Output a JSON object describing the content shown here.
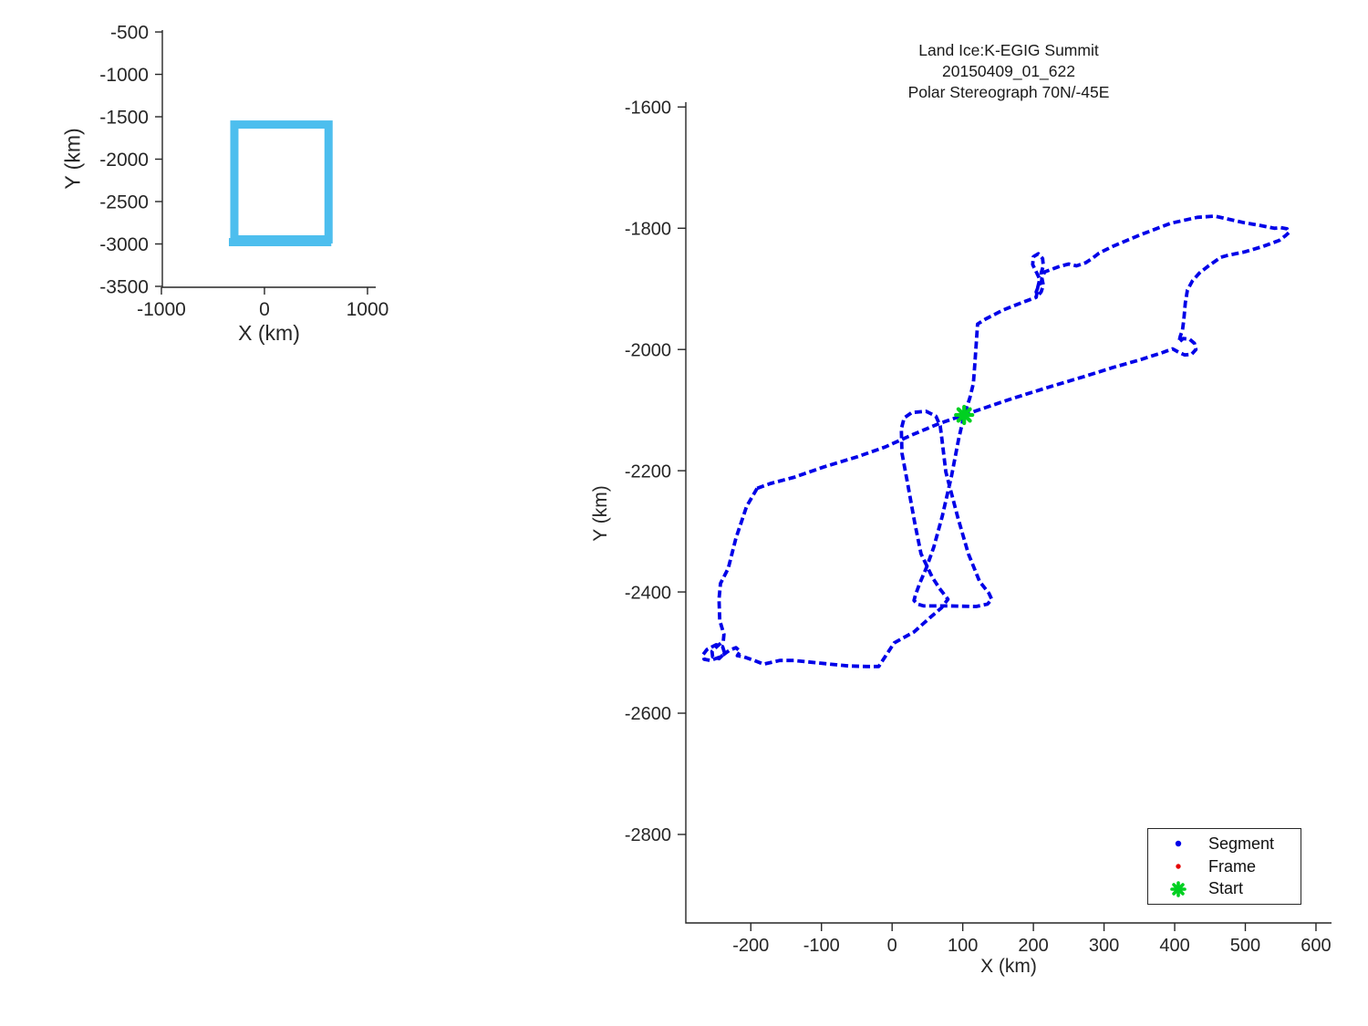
{
  "figure_background": "#FFFFFF",
  "axis_color": "#262626",
  "legend": {
    "items": [
      {
        "label": "Segment",
        "marker": "dot",
        "color": "#0000E8"
      },
      {
        "label": "Frame",
        "marker": "dot",
        "color": "#E60000"
      },
      {
        "label": "Start",
        "marker": "asterisk",
        "color": "#00D021"
      }
    ]
  },
  "chart_data": [
    {
      "type": "line",
      "role": "overview-map",
      "title": "",
      "xlabel": "X (km)",
      "ylabel": "Y (km)",
      "xlim": [
        -991,
        1080
      ],
      "ylim": [
        -3511,
        -478
      ],
      "x_ticks": [
        -1000,
        0,
        1000
      ],
      "y_ticks": [
        -500,
        -1000,
        -1500,
        -2000,
        -2500,
        -3000,
        -3500
      ],
      "grid": false,
      "series": [
        {
          "name": "coverage-extent-box",
          "type": "box",
          "x_range": [
            -292,
            622
          ],
          "y_range": [
            -2946,
            -1592
          ],
          "color": "#4DBEEE",
          "line_width": 9
        }
      ]
    },
    {
      "type": "line",
      "role": "flight-track",
      "title_lines": [
        "Land Ice:K-EGIG Summit",
        "20150409_01_622",
        "Polar Stereograph 70N/-45E"
      ],
      "xlabel": "X (km)",
      "ylabel": "Y (km)",
      "xlim": [
        -292,
        622
      ],
      "ylim": [
        -2946,
        -1592
      ],
      "x_ticks": [
        -200,
        -100,
        0,
        100,
        200,
        300,
        400,
        500,
        600
      ],
      "y_ticks": [
        -1600,
        -1800,
        -2000,
        -2200,
        -2400,
        -2600,
        -2800
      ],
      "grid": false,
      "legend_position": "southeast",
      "series": [
        {
          "name": "Segment",
          "style": "dashed",
          "color": "#0000E8",
          "points": [
            [
              -191,
              -2229
            ],
            [
              -172,
              -2221
            ],
            [
              -139,
              -2211
            ],
            [
              -97,
              -2194
            ],
            [
              -49,
              -2177
            ],
            [
              -10,
              -2161
            ],
            [
              28,
              -2141
            ],
            [
              67,
              -2122
            ],
            [
              102,
              -2108
            ],
            [
              132,
              -2096
            ],
            [
              170,
              -2081
            ],
            [
              222,
              -2062
            ],
            [
              274,
              -2044
            ],
            [
              312,
              -2030
            ],
            [
              351,
              -2017
            ],
            [
              383,
              -2005
            ],
            [
              397,
              -1999
            ],
            [
              405,
              -2004
            ],
            [
              414,
              -2009
            ],
            [
              424,
              -2008
            ],
            [
              430,
              -2000
            ],
            [
              428,
              -1990
            ],
            [
              421,
              -1983
            ],
            [
              412,
              -1982
            ],
            [
              406,
              -1988
            ],
            [
              408,
              -1978
            ],
            [
              411,
              -1968
            ],
            [
              413,
              -1950
            ],
            [
              415,
              -1923
            ],
            [
              418,
              -1902
            ],
            [
              425,
              -1887
            ],
            [
              435,
              -1874
            ],
            [
              448,
              -1862
            ],
            [
              465,
              -1848
            ],
            [
              474,
              -1845
            ],
            [
              499,
              -1839
            ],
            [
              525,
              -1830
            ],
            [
              548,
              -1820
            ],
            [
              556,
              -1813
            ],
            [
              562,
              -1807
            ],
            [
              559,
              -1801
            ],
            [
              550,
              -1799
            ],
            [
              541,
              -1800
            ],
            [
              519,
              -1795
            ],
            [
              499,
              -1791
            ],
            [
              480,
              -1786
            ],
            [
              457,
              -1780
            ],
            [
              432,
              -1782
            ],
            [
              394,
              -1792
            ],
            [
              351,
              -1811
            ],
            [
              312,
              -1830
            ],
            [
              293,
              -1841
            ],
            [
              283,
              -1850
            ],
            [
              274,
              -1857
            ],
            [
              261,
              -1862
            ],
            [
              250,
              -1859
            ],
            [
              237,
              -1863
            ],
            [
              225,
              -1868
            ],
            [
              216,
              -1872
            ],
            [
              212,
              -1882
            ],
            [
              214,
              -1894
            ],
            [
              211,
              -1905
            ],
            [
              206,
              -1912
            ],
            [
              204,
              -1905
            ],
            [
              207,
              -1896
            ],
            [
              212,
              -1886
            ],
            [
              211,
              -1874
            ],
            [
              214,
              -1862
            ],
            [
              213,
              -1850
            ],
            [
              207,
              -1842
            ],
            [
              200,
              -1847
            ],
            [
              199,
              -1860
            ],
            [
              204,
              -1872
            ],
            [
              209,
              -1884
            ],
            [
              206,
              -1898
            ],
            [
              204,
              -1914
            ],
            [
              183,
              -1923
            ],
            [
              157,
              -1935
            ],
            [
              132,
              -1950
            ],
            [
              121,
              -1958
            ],
            [
              119,
              -1991
            ],
            [
              117,
              -2026
            ],
            [
              115,
              -2056
            ],
            [
              110,
              -2080
            ],
            [
              102,
              -2108
            ],
            [
              94,
              -2149
            ],
            [
              84,
              -2209
            ],
            [
              71,
              -2275
            ],
            [
              59,
              -2326
            ],
            [
              49,
              -2359
            ],
            [
              39,
              -2386
            ],
            [
              33,
              -2405
            ],
            [
              31,
              -2414
            ],
            [
              36,
              -2420
            ],
            [
              45,
              -2423
            ],
            [
              80,
              -2423
            ],
            [
              119,
              -2424
            ],
            [
              135,
              -2420
            ],
            [
              141,
              -2412
            ],
            [
              137,
              -2402
            ],
            [
              124,
              -2383
            ],
            [
              108,
              -2337
            ],
            [
              93,
              -2277
            ],
            [
              76,
              -2202
            ],
            [
              70,
              -2143
            ],
            [
              68,
              -2126
            ],
            [
              62,
              -2110
            ],
            [
              48,
              -2102
            ],
            [
              28,
              -2104
            ],
            [
              17,
              -2113
            ],
            [
              13,
              -2131
            ],
            [
              14,
              -2171
            ],
            [
              22,
              -2221
            ],
            [
              32,
              -2286
            ],
            [
              41,
              -2337
            ],
            [
              57,
              -2376
            ],
            [
              67,
              -2394
            ],
            [
              79,
              -2412
            ],
            [
              70,
              -2426
            ],
            [
              54,
              -2442
            ],
            [
              31,
              -2466
            ],
            [
              3,
              -2484
            ],
            [
              -19,
              -2523
            ],
            [
              -36,
              -2523
            ],
            [
              -62,
              -2522
            ],
            [
              -88,
              -2519
            ],
            [
              -114,
              -2516
            ],
            [
              -139,
              -2513
            ],
            [
              -159,
              -2513
            ],
            [
              -182,
              -2519
            ],
            [
              -195,
              -2513
            ],
            [
              -210,
              -2507
            ],
            [
              -219,
              -2505
            ],
            [
              -215,
              -2498
            ],
            [
              -221,
              -2492
            ],
            [
              -230,
              -2496
            ],
            [
              -243,
              -2507
            ],
            [
              -257,
              -2513
            ],
            [
              -266,
              -2511
            ],
            [
              -268,
              -2504
            ],
            [
              -262,
              -2495
            ],
            [
              -249,
              -2487
            ],
            [
              -240,
              -2490
            ],
            [
              -237,
              -2501
            ],
            [
              -245,
              -2510
            ],
            [
              -254,
              -2507
            ],
            [
              -255,
              -2498
            ],
            [
              -248,
              -2490
            ],
            [
              -239,
              -2481
            ],
            [
              -238,
              -2470
            ],
            [
              -244,
              -2447
            ],
            [
              -245,
              -2412
            ],
            [
              -243,
              -2386
            ],
            [
              -232,
              -2361
            ],
            [
              -221,
              -2311
            ],
            [
              -206,
              -2259
            ],
            [
              -191,
              -2229
            ]
          ]
        },
        {
          "name": "Frame",
          "style": "dot",
          "color": "#E60000",
          "points": []
        },
        {
          "name": "Start",
          "style": "asterisk-marker",
          "color": "#00D021",
          "points": [
            [
              102,
              -2108
            ]
          ]
        }
      ]
    }
  ]
}
